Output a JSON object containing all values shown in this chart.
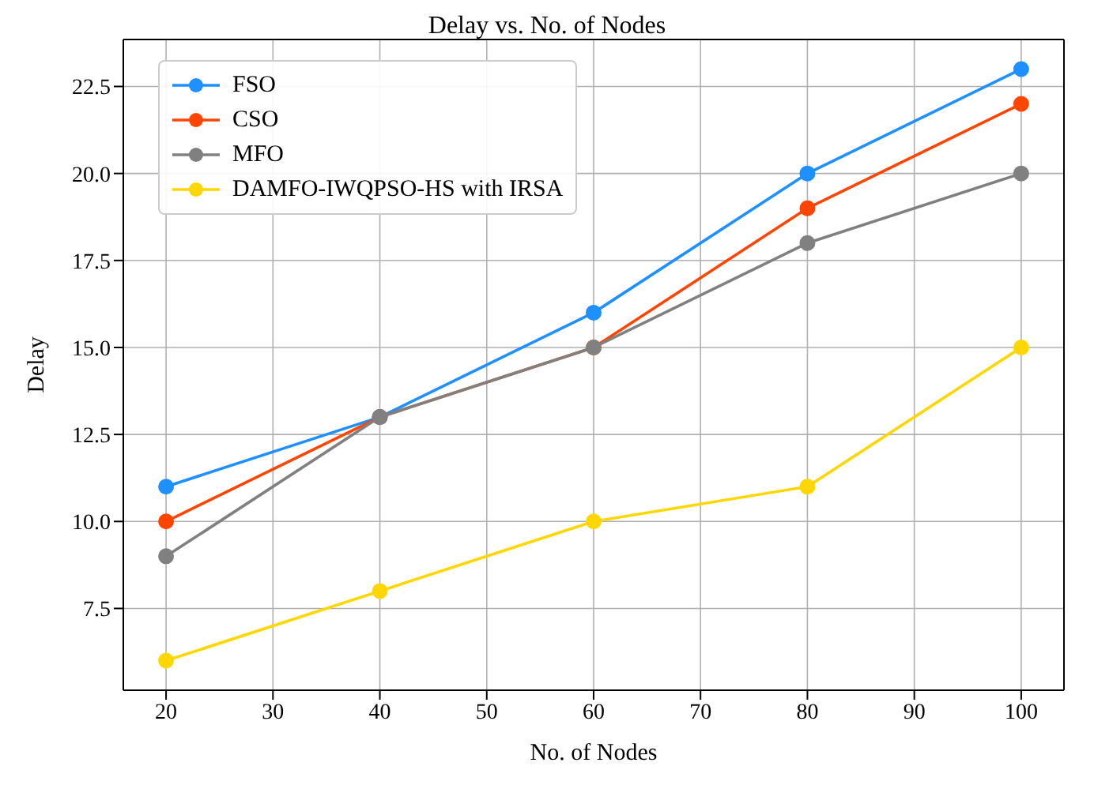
{
  "chart_data": {
    "type": "line",
    "title": "Delay vs. No. of Nodes",
    "xlabel": "No. of Nodes",
    "ylabel": "Delay",
    "x": [
      20,
      40,
      60,
      80,
      100
    ],
    "series": [
      {
        "name": "FSO",
        "color": "#1e90ff",
        "values": [
          11,
          13,
          16,
          20,
          23
        ]
      },
      {
        "name": "CSO",
        "color": "#ff4500",
        "values": [
          10,
          13,
          15,
          19,
          22
        ]
      },
      {
        "name": "MFO",
        "color": "#808080",
        "values": [
          9,
          13,
          15,
          18,
          20
        ]
      },
      {
        "name": "DAMFO-IWQPSO-HS with IRSA",
        "color": "#ffd700",
        "values": [
          6,
          8,
          10,
          11,
          15
        ]
      }
    ],
    "xlim": [
      16,
      104
    ],
    "xticks": [
      20,
      30,
      40,
      50,
      60,
      70,
      80,
      90,
      100
    ],
    "ylim": [
      5.15,
      23.85
    ],
    "yticks": [
      {
        "value": 7.5,
        "label": "7.5"
      },
      {
        "value": 10,
        "label": "10.0"
      },
      {
        "value": 12.5,
        "label": "12.5"
      },
      {
        "value": 15,
        "label": "15.0"
      },
      {
        "value": 17.5,
        "label": "17.5"
      },
      {
        "value": 20,
        "label": "20.0"
      },
      {
        "value": 22.5,
        "label": "22.5"
      }
    ],
    "grid": true,
    "legend": "top left",
    "marker": "circle",
    "line_style": "solid"
  }
}
